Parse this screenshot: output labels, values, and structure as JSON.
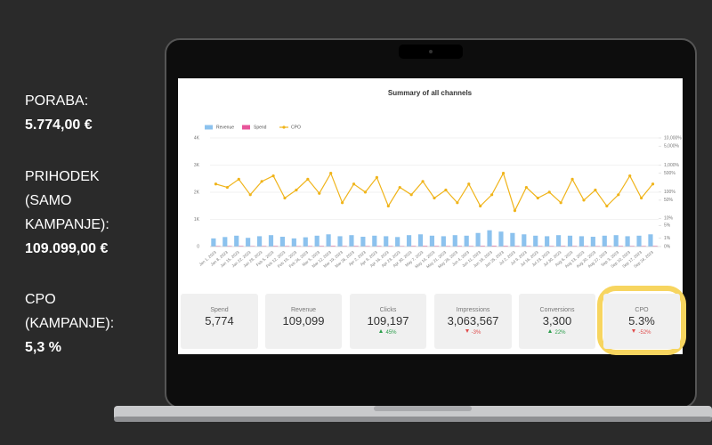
{
  "sidebar": [
    {
      "label": "PORABA:",
      "value": "5.774,00 €"
    },
    {
      "label": "PRIHODEK (SAMO KAMPANJE):",
      "value": "109.099,00 €"
    },
    {
      "label": "CPO (KAMPANJE):",
      "value": "5,3 %"
    }
  ],
  "chart_data": {
    "type": "bar_line",
    "title": "Summary of all channels",
    "x": [
      "Jan 1, 2023",
      "Jan 8, 2023",
      "Jan 15, 2023",
      "Jan 22, 2023",
      "Jan 29, 2023",
      "Feb 5, 2023",
      "Feb 12, 2023",
      "Feb 19, 2023",
      "Feb 26, 2023",
      "Mar 5, 2023",
      "Mar 12, 2023",
      "Mar 19, 2023",
      "Mar 26, 2023",
      "Apr 2, 2023",
      "Apr 9, 2023",
      "Apr 16, 2023",
      "Apr 23, 2023",
      "Apr 30, 2023",
      "May 7, 2023",
      "May 14, 2023",
      "May 21, 2023",
      "May 28, 2023",
      "Jun 4, 2023",
      "Jun 11, 2023",
      "Jun 18, 2023",
      "Jun 25, 2023",
      "Jul 2, 2023",
      "Jul 9, 2023",
      "Jul 16, 2023",
      "Jul 23, 2023",
      "Jul 30, 2023",
      "Aug 6, 2023",
      "Aug 13, 2023",
      "Aug 20, 2023",
      "Aug 27, 2023",
      "Sep 3, 2023",
      "Sep 10, 2023",
      "Sep 17, 2023",
      "Sep 24, 2023"
    ],
    "series": [
      {
        "name": "Revenue",
        "color": "#8cc2ee",
        "values": [
          300,
          350,
          400,
          320,
          380,
          420,
          360,
          300,
          340,
          400,
          450,
          380,
          420,
          360,
          400,
          380,
          350,
          420,
          450,
          400,
          380,
          420,
          400,
          500,
          600,
          550,
          500,
          450,
          400,
          380,
          420,
          400,
          380,
          360,
          400,
          420,
          380,
          400,
          450
        ]
      },
      {
        "name": "Spend",
        "color": "#e8559a",
        "values": [
          20,
          20,
          22,
          18,
          20,
          22,
          20,
          18,
          20,
          22,
          24,
          20,
          22,
          20,
          22,
          20,
          18,
          22,
          24,
          22,
          20,
          22,
          20,
          24,
          26,
          24,
          22,
          22,
          20,
          20,
          22,
          20,
          20,
          18,
          20,
          22,
          20,
          20,
          22
        ]
      },
      {
        "name": "CPO",
        "color": "#f0b41a",
        "axis": "y2",
        "values": [
          200,
          150,
          300,
          80,
          250,
          400,
          60,
          120,
          300,
          90,
          500,
          40,
          200,
          100,
          350,
          30,
          150,
          80,
          250,
          60,
          120,
          40,
          200,
          30,
          80,
          500,
          20,
          150,
          60,
          100,
          40,
          300,
          50,
          120,
          30,
          80,
          400,
          60,
          200
        ]
      }
    ],
    "ylim": [
      0,
      4000
    ],
    "yticks": [
      0,
      {
        "value": 1000,
        "label": "1K"
      },
      {
        "value": 2000,
        "label": "2K"
      },
      {
        "value": 3000,
        "label": "3K"
      },
      {
        "value": 4000,
        "label": "4K"
      }
    ],
    "y2lim": [
      0,
      10000
    ],
    "y2scale": "symlog",
    "y2ticks": [
      {
        "value": 0,
        "label": "0%"
      },
      {
        "value": 1,
        "label": "1%"
      },
      {
        "value": 5,
        "label": "5%"
      },
      {
        "value": 10,
        "label": "10%"
      },
      {
        "value": 50,
        "label": "50%"
      },
      {
        "value": 100,
        "label": "100%"
      },
      {
        "value": 500,
        "label": "500%"
      },
      {
        "value": 1000,
        "label": "1,000%"
      },
      {
        "value": 5000,
        "label": "5,000%"
      },
      {
        "value": 10000,
        "label": "10,000%"
      }
    ],
    "grid": true
  },
  "cards": [
    {
      "label": "Spend",
      "value": "5,774"
    },
    {
      "label": "Revenue",
      "value": "109,099"
    },
    {
      "label": "Clicks",
      "value": "109,197",
      "change": "45%",
      "trend": "up"
    },
    {
      "label": "Impressions",
      "value": "3,063,567",
      "change": "-3%",
      "trend": "down"
    },
    {
      "label": "Conversions",
      "value": "3,300",
      "change": "22%",
      "trend": "up"
    },
    {
      "label": "CPO",
      "value": "5.3%",
      "change": "-52%",
      "trend": "down"
    }
  ]
}
